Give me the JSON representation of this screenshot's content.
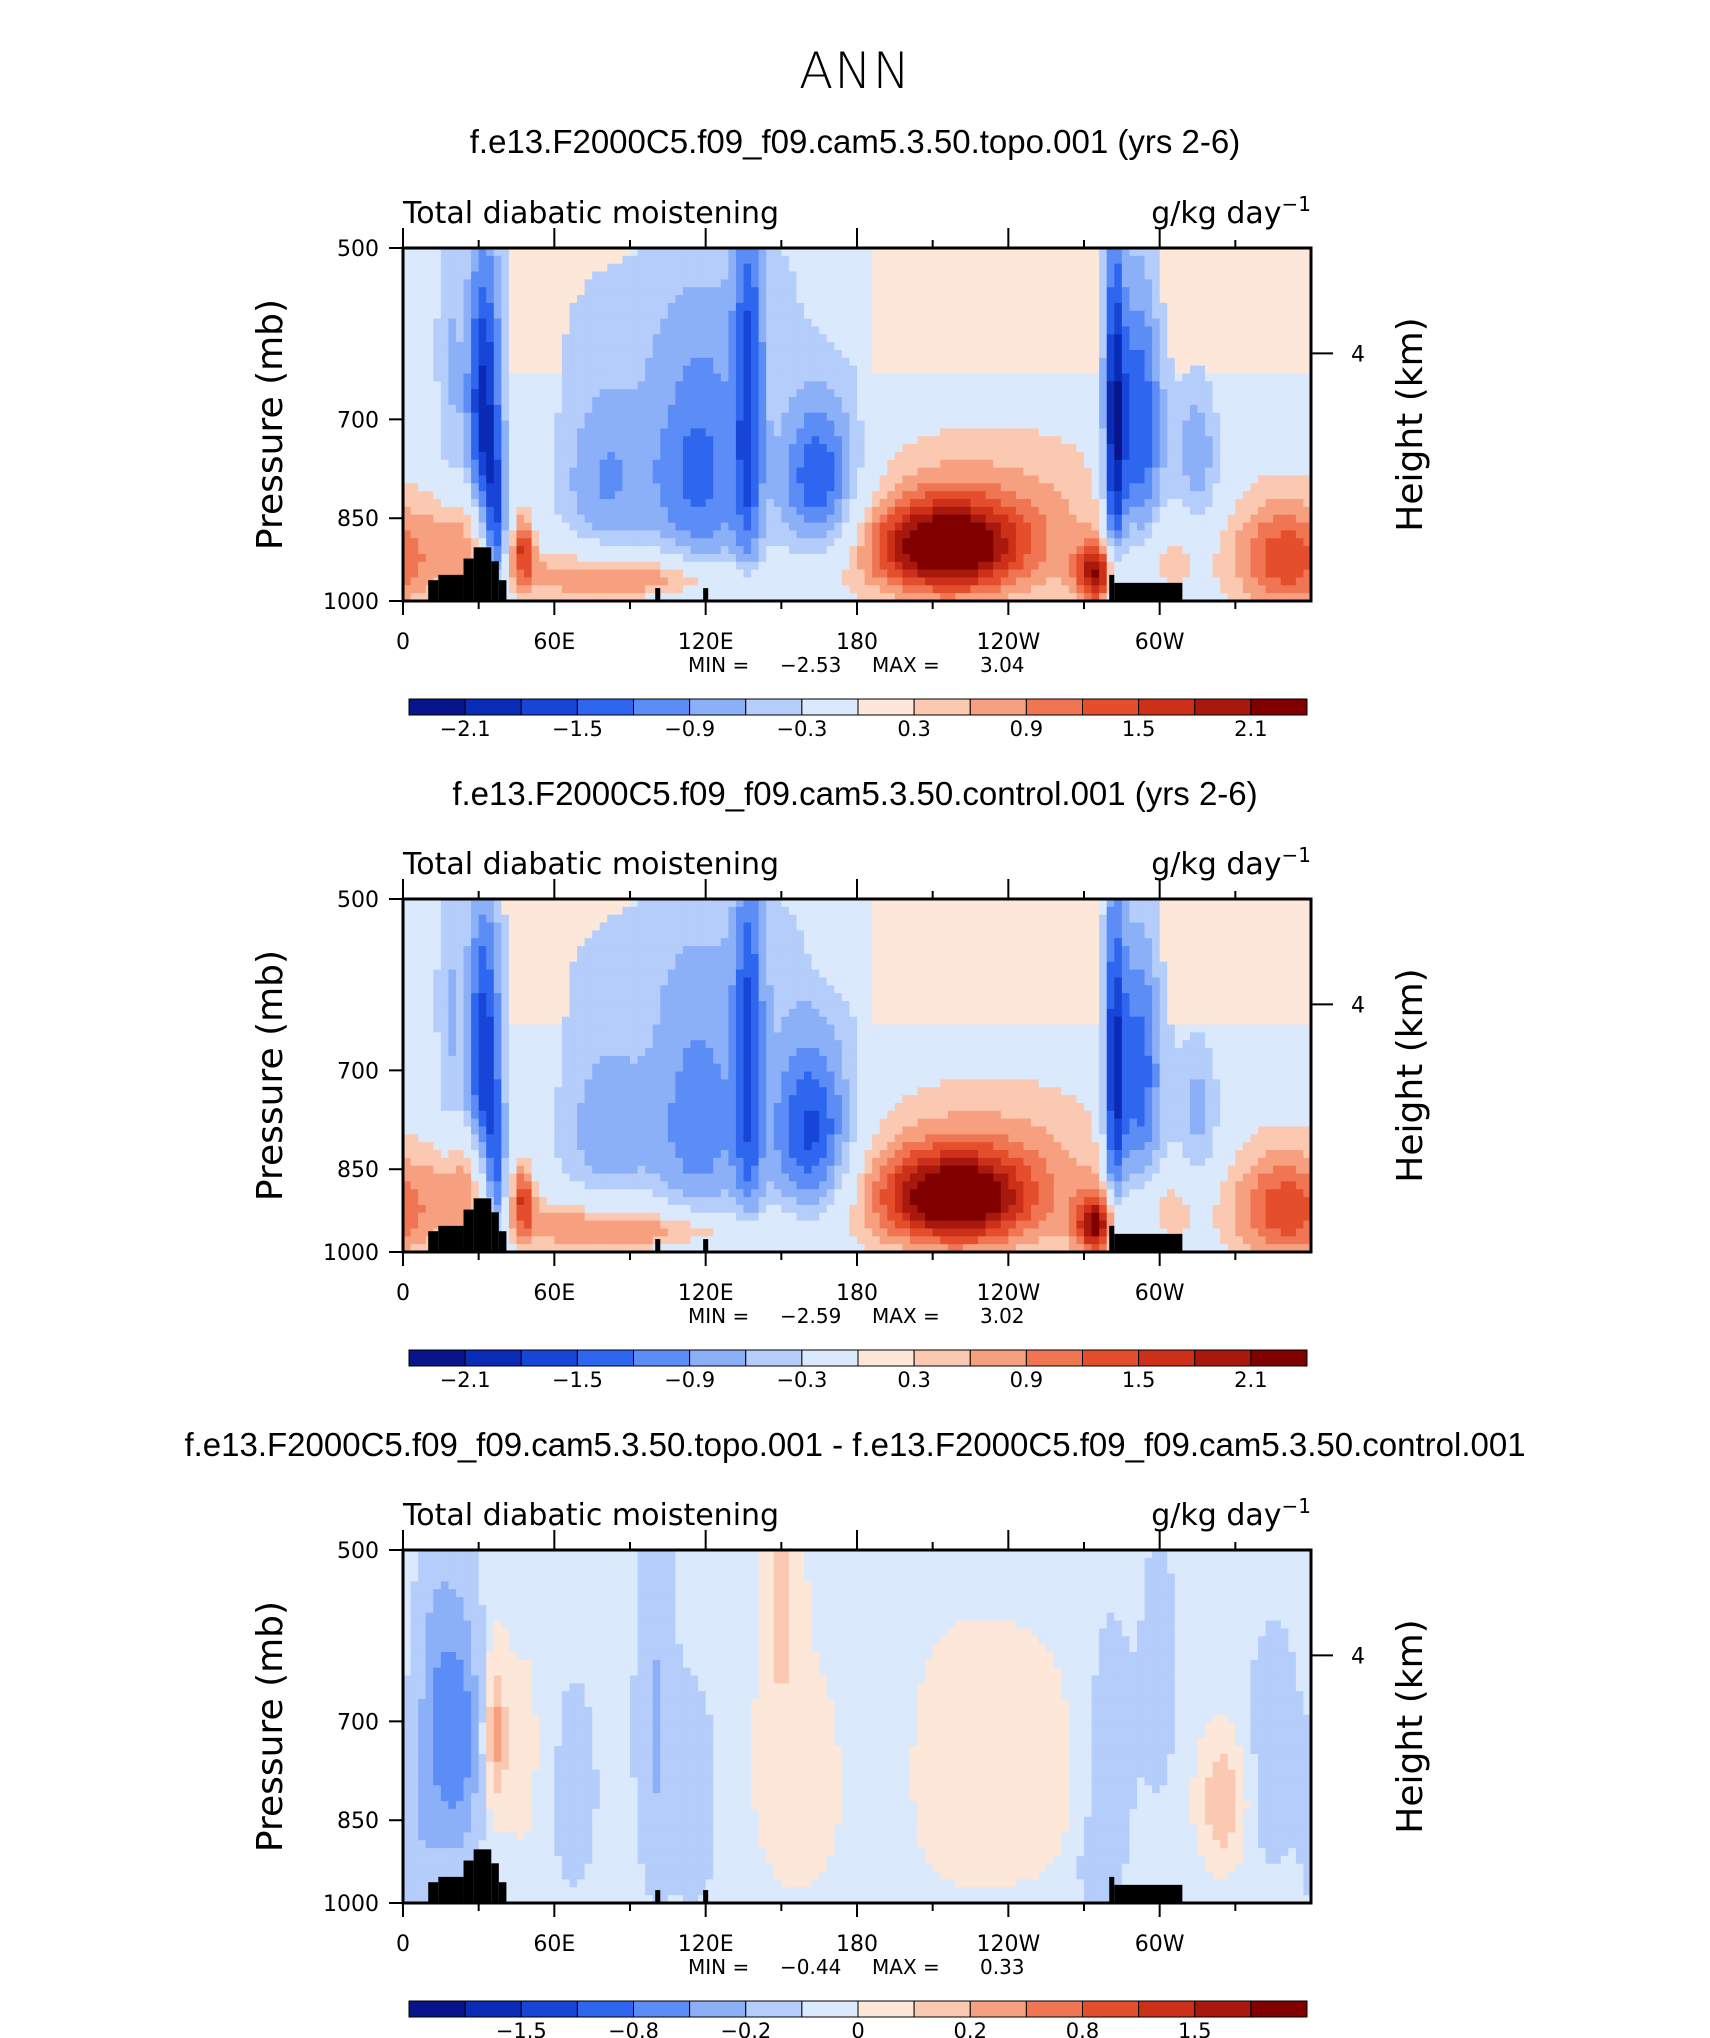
{
  "figure": {
    "season_title": "ANN"
  },
  "chart_data": [
    {
      "type": "heatmap",
      "title": "f.e13.F2000C5.f09_f09.cam5.3.50.topo.001 (yrs 2-6)",
      "variable": "Total diabatic moistening",
      "units_base": "g/kg day",
      "units_exp": "−1",
      "ylabel": "Pressure (mb)",
      "ylabel_right": "Height (km)",
      "ylim": [
        1000,
        500
      ],
      "yticks": [
        "500",
        "700",
        "850",
        "1000"
      ],
      "yticks_right": [
        "4"
      ],
      "xticks": [
        "0",
        "60E",
        "120E",
        "180",
        "120W",
        "60W"
      ],
      "min_label": "MIN =",
      "min_value": "−2.53",
      "max_label": "MAX =",
      "max_value": "3.04",
      "colorbar_ticks": [
        "−2.1",
        "−1.5",
        "−0.9",
        "−0.3",
        "0.3",
        "0.9",
        "1.5",
        "2.1"
      ],
      "colorbar_colors": [
        "#08148a",
        "#0a2bb5",
        "#1745d8",
        "#2f66ef",
        "#5c8cf5",
        "#8bb0f8",
        "#b5cdfa",
        "#dbe9fc",
        "#fde7d9",
        "#fbc9b1",
        "#f6a07f",
        "#f07552",
        "#e54e2c",
        "#cc3019",
        "#a8180d",
        "#800000"
      ],
      "features": [
        {
          "lon": 32,
          "lev": 690,
          "val": -1.9,
          "sx": 5,
          "sy": 150
        },
        {
          "lon": 25,
          "lev": 880,
          "val": 0.9,
          "sx": 10,
          "sy": 60
        },
        {
          "lon": 37,
          "lev": 870,
          "val": -1.4,
          "sx": 3,
          "sy": 90
        },
        {
          "lon": 48,
          "lev": 900,
          "val": 1.4,
          "sx": 3,
          "sy": 40
        },
        {
          "lon": 80,
          "lev": 790,
          "val": -0.9,
          "sx": 14,
          "sy": 110
        },
        {
          "lon": 75,
          "lev": 940,
          "val": 0.6,
          "sx": 25,
          "sy": 40
        },
        {
          "lon": 118,
          "lev": 780,
          "val": -1.3,
          "sx": 14,
          "sy": 130
        },
        {
          "lon": 137,
          "lev": 690,
          "val": -1.2,
          "sx": 4,
          "sy": 200
        },
        {
          "lon": 165,
          "lev": 790,
          "val": -1.6,
          "sx": 12,
          "sy": 90
        },
        {
          "lon": 130,
          "lev": 560,
          "val": -0.4,
          "sx": 60,
          "sy": 80
        },
        {
          "lon": 175,
          "lev": 540,
          "val": 0.5,
          "sx": 10,
          "sy": 40
        },
        {
          "lon": 215,
          "lev": 900,
          "val": 2.2,
          "sx": 20,
          "sy": 55
        },
        {
          "lon": 230,
          "lev": 860,
          "val": 0.8,
          "sx": 40,
          "sy": 110
        },
        {
          "lon": 275,
          "lev": 950,
          "val": 1.8,
          "sx": 6,
          "sy": 40
        },
        {
          "lon": 282,
          "lev": 720,
          "val": -1.8,
          "sx": 3,
          "sy": 200
        },
        {
          "lon": 292,
          "lev": 720,
          "val": -1.6,
          "sx": 7,
          "sy": 160
        },
        {
          "lon": 315,
          "lev": 750,
          "val": -0.9,
          "sx": 7,
          "sy": 90
        },
        {
          "lon": 300,
          "lev": 920,
          "val": 0.5,
          "sx": 12,
          "sy": 50
        },
        {
          "lon": 350,
          "lev": 920,
          "val": 1.4,
          "sx": 15,
          "sy": 75
        },
        {
          "lon": 18,
          "lev": 640,
          "val": -0.6,
          "sx": 4,
          "sy": 150
        },
        {
          "lon": 100,
          "lev": 960,
          "val": 0.7,
          "sx": 40,
          "sy": 25
        },
        {
          "lon": 340,
          "lev": 620,
          "val": 0.1,
          "sx": 30,
          "sy": 150
        },
        {
          "lon": 270,
          "lev": 540,
          "val": 0.1,
          "sx": 30,
          "sy": 60
        }
      ]
    },
    {
      "type": "heatmap",
      "title": "f.e13.F2000C5.f09_f09.cam5.3.50.control.001 (yrs 2-6)",
      "variable": "Total diabatic moistening",
      "units_base": "g/kg day",
      "units_exp": "−1",
      "ylabel": "Pressure (mb)",
      "ylabel_right": "Height (km)",
      "ylim": [
        1000,
        500
      ],
      "yticks": [
        "500",
        "700",
        "850",
        "1000"
      ],
      "yticks_right": [
        "4"
      ],
      "xticks": [
        "0",
        "60E",
        "120E",
        "180",
        "120W",
        "60W"
      ],
      "min_label": "MIN =",
      "min_value": "−2.59",
      "max_label": "MAX =",
      "max_value": "3.02",
      "colorbar_ticks": [
        "−2.1",
        "−1.5",
        "−0.9",
        "−0.3",
        "0.3",
        "0.9",
        "1.5",
        "2.1"
      ],
      "colorbar_colors": [
        "#08148a",
        "#0a2bb5",
        "#1745d8",
        "#2f66ef",
        "#5c8cf5",
        "#8bb0f8",
        "#b5cdfa",
        "#dbe9fc",
        "#fde7d9",
        "#fbc9b1",
        "#f6a07f",
        "#f07552",
        "#e54e2c",
        "#cc3019",
        "#a8180d",
        "#800000"
      ],
      "features": [
        {
          "lon": 32,
          "lev": 680,
          "val": -1.7,
          "sx": 5,
          "sy": 140
        },
        {
          "lon": 25,
          "lev": 880,
          "val": 0.9,
          "sx": 10,
          "sy": 60
        },
        {
          "lon": 37,
          "lev": 870,
          "val": -1.3,
          "sx": 3,
          "sy": 90
        },
        {
          "lon": 48,
          "lev": 900,
          "val": 1.4,
          "sx": 3,
          "sy": 40
        },
        {
          "lon": 80,
          "lev": 790,
          "val": -0.8,
          "sx": 14,
          "sy": 110
        },
        {
          "lon": 75,
          "lev": 940,
          "val": 0.6,
          "sx": 25,
          "sy": 40
        },
        {
          "lon": 118,
          "lev": 780,
          "val": -1.1,
          "sx": 14,
          "sy": 130
        },
        {
          "lon": 137,
          "lev": 690,
          "val": -1.1,
          "sx": 4,
          "sy": 200
        },
        {
          "lon": 162,
          "lev": 790,
          "val": -1.7,
          "sx": 12,
          "sy": 100
        },
        {
          "lon": 130,
          "lev": 560,
          "val": -0.4,
          "sx": 60,
          "sy": 80
        },
        {
          "lon": 175,
          "lev": 540,
          "val": 0.5,
          "sx": 10,
          "sy": 40
        },
        {
          "lon": 218,
          "lev": 900,
          "val": 2.2,
          "sx": 20,
          "sy": 55
        },
        {
          "lon": 232,
          "lev": 860,
          "val": 0.8,
          "sx": 40,
          "sy": 110
        },
        {
          "lon": 275,
          "lev": 950,
          "val": 1.9,
          "sx": 6,
          "sy": 40
        },
        {
          "lon": 282,
          "lev": 720,
          "val": -1.6,
          "sx": 3,
          "sy": 200
        },
        {
          "lon": 292,
          "lev": 720,
          "val": -1.5,
          "sx": 7,
          "sy": 160
        },
        {
          "lon": 315,
          "lev": 760,
          "val": -0.8,
          "sx": 7,
          "sy": 90
        },
        {
          "lon": 300,
          "lev": 920,
          "val": 0.5,
          "sx": 12,
          "sy": 50
        },
        {
          "lon": 350,
          "lev": 920,
          "val": 1.4,
          "sx": 15,
          "sy": 75
        },
        {
          "lon": 18,
          "lev": 640,
          "val": -0.6,
          "sx": 4,
          "sy": 150
        },
        {
          "lon": 100,
          "lev": 960,
          "val": 0.7,
          "sx": 40,
          "sy": 25
        },
        {
          "lon": 340,
          "lev": 620,
          "val": 0.1,
          "sx": 30,
          "sy": 150
        },
        {
          "lon": 270,
          "lev": 540,
          "val": 0.1,
          "sx": 30,
          "sy": 60
        }
      ]
    },
    {
      "type": "heatmap",
      "title": "f.e13.F2000C5.f09_f09.cam5.3.50.topo.001 - f.e13.F2000C5.f09_f09.cam5.3.50.control.001",
      "variable": "Total diabatic moistening",
      "units_base": "g/kg day",
      "units_exp": "−1",
      "ylabel": "Pressure (mb)",
      "ylabel_right": "Height (km)",
      "ylim": [
        1000,
        500
      ],
      "yticks": [
        "500",
        "700",
        "850",
        "1000"
      ],
      "yticks_right": [
        "4"
      ],
      "xticks": [
        "0",
        "60E",
        "120E",
        "180",
        "120W",
        "60W"
      ],
      "min_label": "MIN =",
      "min_value": "−0.44",
      "max_label": "MAX =",
      "max_value": "0.33",
      "colorbar_ticks": [
        "−1.5",
        "−0.8",
        "−0.2",
        "0",
        "0.2",
        "0.8",
        "1.5"
      ],
      "colorbar_colors": [
        "#08148a",
        "#0a2bb5",
        "#1745d8",
        "#2f66ef",
        "#5c8cf5",
        "#8bb0f8",
        "#b5cdfa",
        "#dbe9fc",
        "#fde7d9",
        "#fbc9b1",
        "#f6a07f",
        "#f07552",
        "#e54e2c",
        "#cc3019",
        "#a8180d",
        "#800000"
      ],
      "features": [
        {
          "lon": 22,
          "lev": 720,
          "val": -0.45,
          "sx": 6,
          "sy": 130
        },
        {
          "lon": 12,
          "lev": 700,
          "val": -0.25,
          "sx": 5,
          "sy": 150
        },
        {
          "lon": 37,
          "lev": 720,
          "val": 0.4,
          "sx": 3,
          "sy": 70
        },
        {
          "lon": 50,
          "lev": 760,
          "val": 0.1,
          "sx": 8,
          "sy": 150
        },
        {
          "lon": 65,
          "lev": 800,
          "val": -0.1,
          "sx": 10,
          "sy": 150
        },
        {
          "lon": 100,
          "lev": 700,
          "val": -0.22,
          "sx": 5,
          "sy": 170
        },
        {
          "lon": 115,
          "lev": 820,
          "val": -0.15,
          "sx": 7,
          "sy": 120
        },
        {
          "lon": 150,
          "lev": 560,
          "val": 0.25,
          "sx": 5,
          "sy": 90
        },
        {
          "lon": 155,
          "lev": 800,
          "val": 0.08,
          "sx": 15,
          "sy": 160
        },
        {
          "lon": 190,
          "lev": 760,
          "val": -0.08,
          "sx": 10,
          "sy": 150
        },
        {
          "lon": 230,
          "lev": 770,
          "val": 0.12,
          "sx": 35,
          "sy": 150
        },
        {
          "lon": 280,
          "lev": 760,
          "val": -0.15,
          "sx": 8,
          "sy": 150
        },
        {
          "lon": 300,
          "lev": 650,
          "val": -0.1,
          "sx": 6,
          "sy": 150
        },
        {
          "lon": 325,
          "lev": 820,
          "val": 0.35,
          "sx": 6,
          "sy": 70
        },
        {
          "lon": 345,
          "lev": 750,
          "val": -0.1,
          "sx": 10,
          "sy": 150
        },
        {
          "lon": 275,
          "lev": 930,
          "val": -0.15,
          "sx": 5,
          "sy": 50
        },
        {
          "lon": 5,
          "lev": 900,
          "val": -0.12,
          "sx": 5,
          "sy": 100
        }
      ]
    }
  ]
}
